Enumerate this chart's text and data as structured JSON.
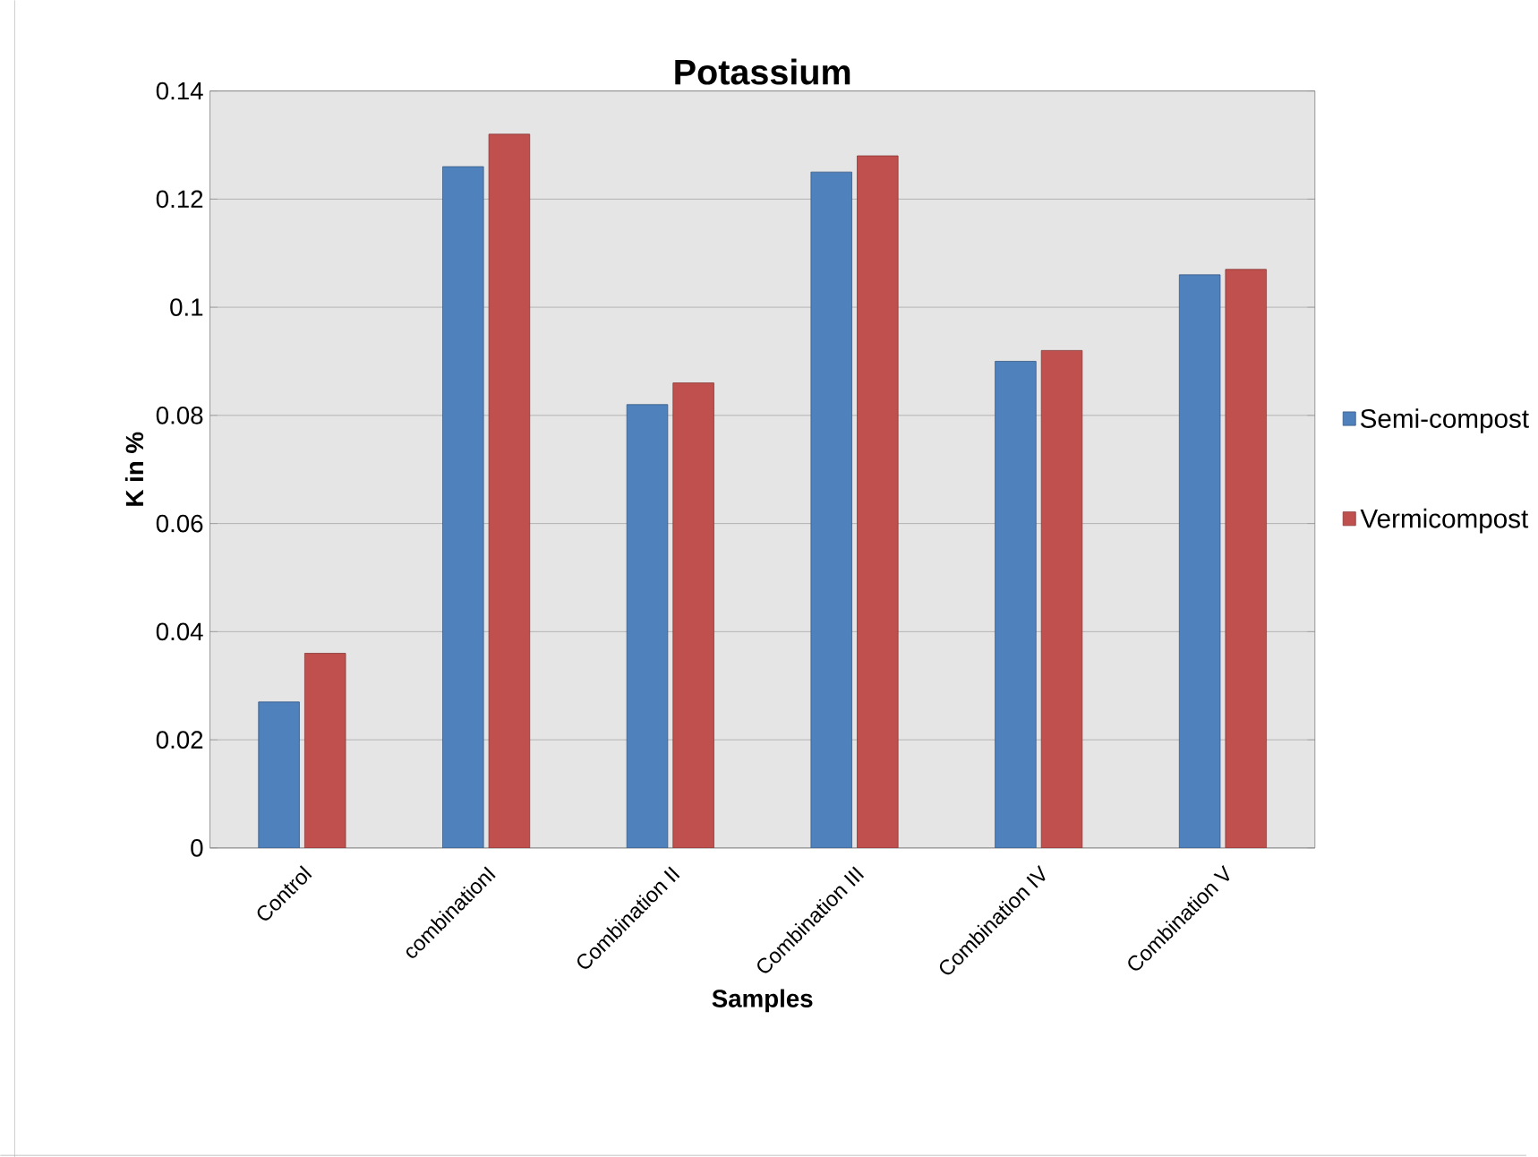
{
  "chart_data": {
    "type": "bar",
    "title": "Potassium",
    "xlabel": "Samples",
    "ylabel": "K in %",
    "categories": [
      "Control",
      "combinationI",
      "Combination II",
      "Combination III",
      "Combination IV",
      "Combination V"
    ],
    "series": [
      {
        "name": "Semi-compost",
        "color": "#4f81bd",
        "values": [
          0.027,
          0.126,
          0.082,
          0.125,
          0.09,
          0.106
        ]
      },
      {
        "name": "Vermicompost",
        "color": "#c0504d",
        "values": [
          0.036,
          0.132,
          0.086,
          0.128,
          0.092,
          0.107
        ]
      }
    ],
    "ylim": [
      0,
      0.14
    ],
    "yticks": [
      0,
      0.02,
      0.04,
      0.06,
      0.08,
      0.1,
      0.12,
      0.14
    ],
    "grid": "y",
    "legend": "right"
  }
}
